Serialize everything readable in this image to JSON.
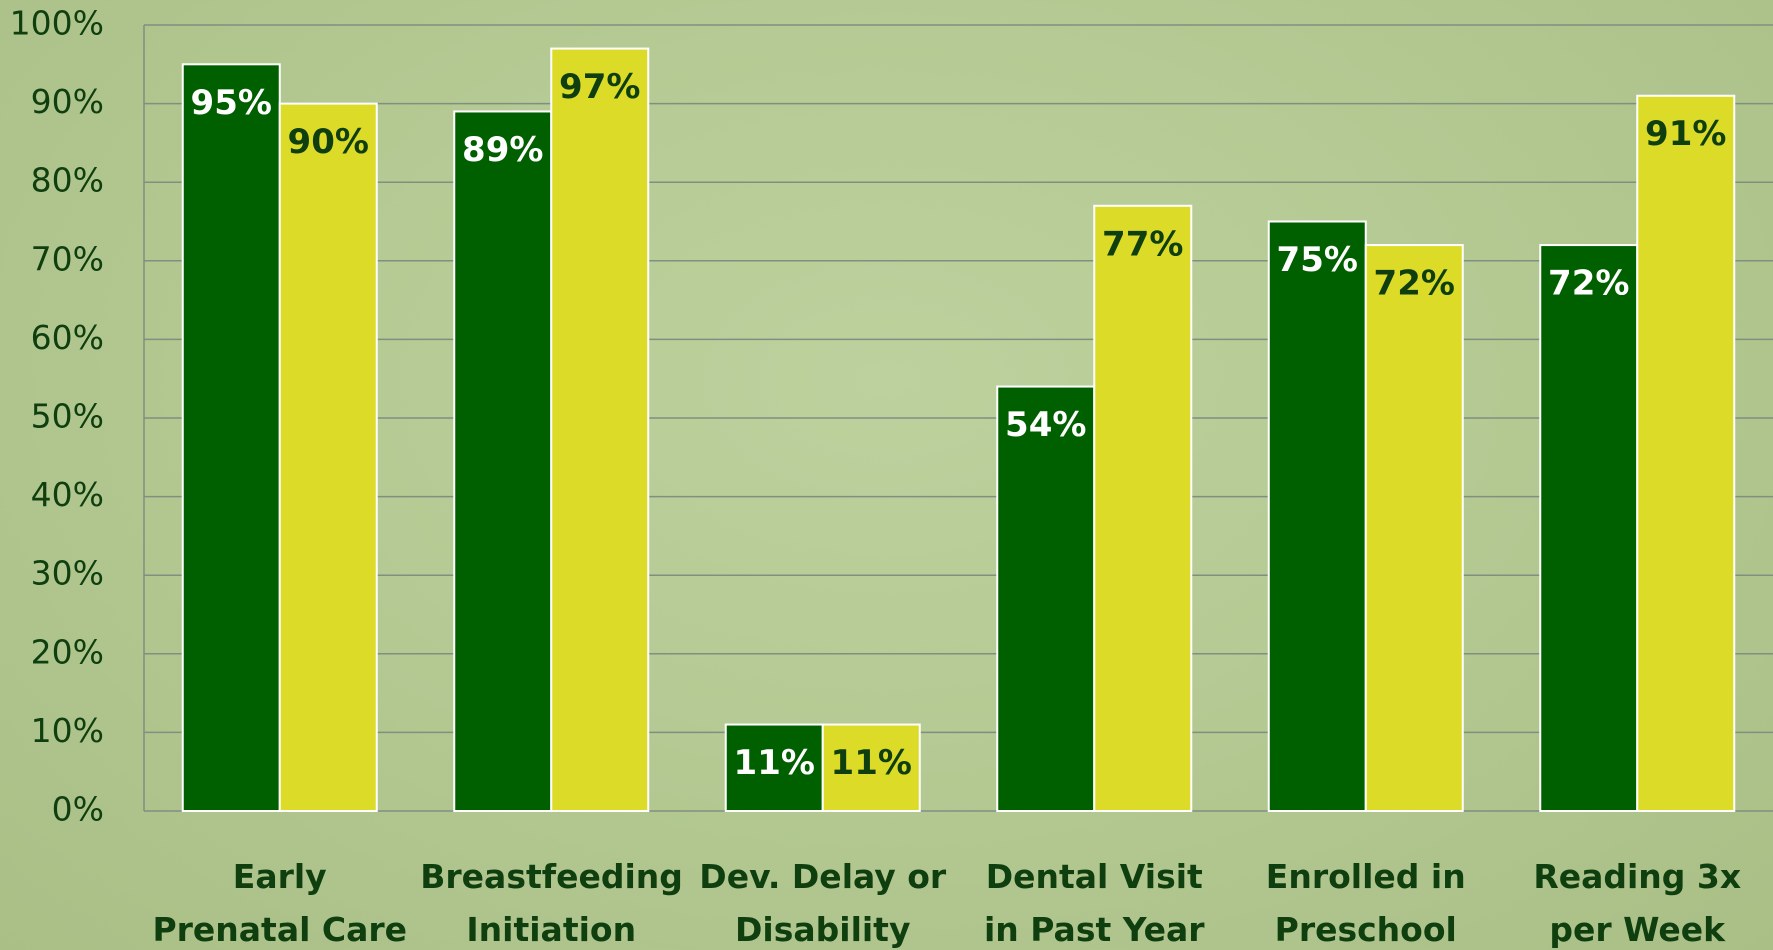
{
  "chart_data": {
    "type": "bar",
    "categories": [
      "Early Prenatal Care",
      "Breastfeeding Initiation",
      "Dev. Delay or Disability",
      "Dental Visit in Past Year",
      "Enrolled in Preschool",
      "Reading 3x per Week"
    ],
    "series": [
      {
        "color": "#006000",
        "values": [
          95,
          89,
          11,
          54,
          75,
          72
        ],
        "value_labels": [
          "95%",
          "89%",
          "11%",
          "54%",
          "75%",
          "72%"
        ]
      },
      {
        "color": "#dcdc28",
        "values": [
          90,
          97,
          11,
          77,
          72,
          91
        ],
        "value_labels": [
          "90%",
          "97%",
          "11%",
          "77%",
          "72%",
          "91%"
        ]
      }
    ],
    "ylim": [
      0,
      100
    ],
    "yticks": [
      {
        "value": 0,
        "label": "0%"
      },
      {
        "value": 10,
        "label": "10%"
      },
      {
        "value": 20,
        "label": "20%"
      },
      {
        "value": 30,
        "label": "30%"
      },
      {
        "value": 40,
        "label": "40%"
      },
      {
        "value": 50,
        "label": "50%"
      },
      {
        "value": 60,
        "label": "60%"
      },
      {
        "value": 70,
        "label": "70%"
      },
      {
        "value": 80,
        "label": "80%"
      },
      {
        "value": 90,
        "label": "90%"
      },
      {
        "value": 100,
        "label": "100%"
      }
    ],
    "grid": true
  }
}
